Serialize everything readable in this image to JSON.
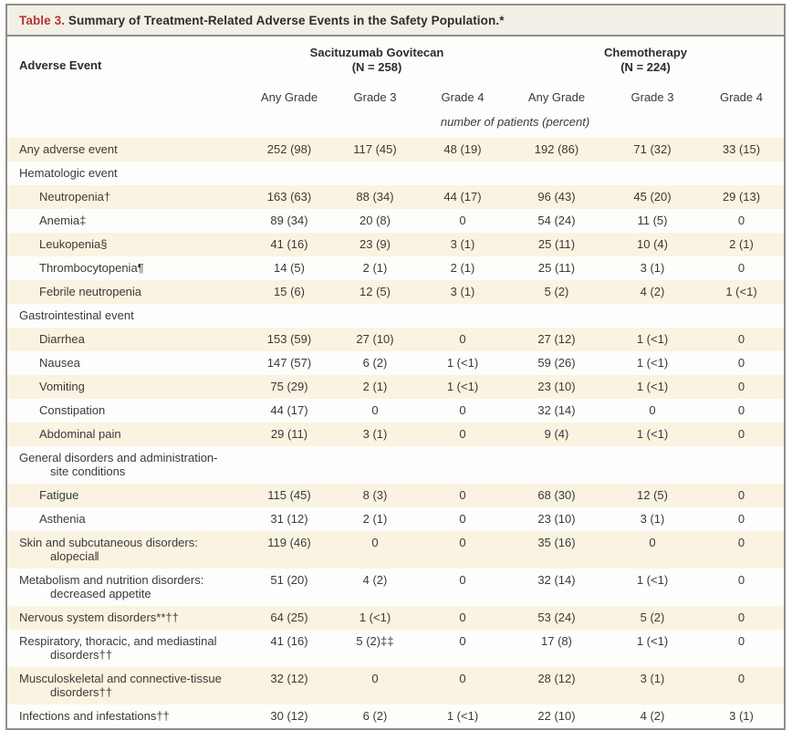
{
  "table": {
    "title_label": "Table 3.",
    "title_text": " Summary of Treatment-Related Adverse Events in the Safety Population.*",
    "left_header": "Adverse Event",
    "groups": [
      {
        "name": "Sacituzumab Govitecan",
        "n": "(N = 258)"
      },
      {
        "name": "Chemotherapy",
        "n": "(N = 224)"
      }
    ],
    "subcolumns": [
      "Any Grade",
      "Grade 3",
      "Grade 4",
      "Any Grade",
      "Grade 3",
      "Grade 4"
    ],
    "units_note": "number of patients (percent)",
    "rows": [
      {
        "label_lines": [
          "Any adverse event"
        ],
        "indent": 0,
        "shaded": true,
        "values": [
          "252 (98)",
          "117 (45)",
          "48 (19)",
          "192 (86)",
          "71 (32)",
          "33 (15)"
        ]
      },
      {
        "label_lines": [
          "Hematologic event"
        ],
        "indent": 0,
        "shaded": false,
        "values": [
          "",
          "",
          "",
          "",
          "",
          ""
        ]
      },
      {
        "label_lines": [
          "Neutropenia†"
        ],
        "indent": 1,
        "shaded": true,
        "values": [
          "163 (63)",
          "88 (34)",
          "44 (17)",
          "96 (43)",
          "45 (20)",
          "29 (13)"
        ]
      },
      {
        "label_lines": [
          "Anemia‡"
        ],
        "indent": 1,
        "shaded": false,
        "values": [
          "89 (34)",
          "20 (8)",
          "0",
          "54 (24)",
          "11 (5)",
          "0"
        ]
      },
      {
        "label_lines": [
          "Leukopenia§"
        ],
        "indent": 1,
        "shaded": true,
        "values": [
          "41 (16)",
          "23 (9)",
          "3 (1)",
          "25 (11)",
          "10 (4)",
          "2 (1)"
        ]
      },
      {
        "label_lines": [
          "Thrombocytopenia¶"
        ],
        "indent": 1,
        "shaded": false,
        "values": [
          "14 (5)",
          "2 (1)",
          "2 (1)",
          "25 (11)",
          "3 (1)",
          "0"
        ]
      },
      {
        "label_lines": [
          "Febrile neutropenia"
        ],
        "indent": 1,
        "shaded": true,
        "values": [
          "15 (6)",
          "12 (5)",
          "3 (1)",
          "5 (2)",
          "4 (2)",
          "1 (<1)"
        ]
      },
      {
        "label_lines": [
          "Gastrointestinal event"
        ],
        "indent": 0,
        "shaded": false,
        "values": [
          "",
          "",
          "",
          "",
          "",
          ""
        ]
      },
      {
        "label_lines": [
          "Diarrhea"
        ],
        "indent": 1,
        "shaded": true,
        "values": [
          "153 (59)",
          "27 (10)",
          "0",
          "27 (12)",
          "1 (<1)",
          "0"
        ]
      },
      {
        "label_lines": [
          "Nausea"
        ],
        "indent": 1,
        "shaded": false,
        "values": [
          "147 (57)",
          "6 (2)",
          "1 (<1)",
          "59 (26)",
          "1 (<1)",
          "0"
        ]
      },
      {
        "label_lines": [
          "Vomiting"
        ],
        "indent": 1,
        "shaded": true,
        "values": [
          "75 (29)",
          "2 (1)",
          "1 (<1)",
          "23 (10)",
          "1 (<1)",
          "0"
        ]
      },
      {
        "label_lines": [
          "Constipation"
        ],
        "indent": 1,
        "shaded": false,
        "values": [
          "44 (17)",
          "0",
          "0",
          "32 (14)",
          "0",
          "0"
        ]
      },
      {
        "label_lines": [
          "Abdominal pain"
        ],
        "indent": 1,
        "shaded": true,
        "values": [
          "29 (11)",
          "3 (1)",
          "0",
          "9 (4)",
          "1 (<1)",
          "0"
        ]
      },
      {
        "label_lines": [
          "General disorders and administration-",
          "site conditions"
        ],
        "indent": 0,
        "shaded": false,
        "values": [
          "",
          "",
          "",
          "",
          "",
          ""
        ]
      },
      {
        "label_lines": [
          "Fatigue"
        ],
        "indent": 1,
        "shaded": true,
        "values": [
          "115 (45)",
          "8 (3)",
          "0",
          "68 (30)",
          "12 (5)",
          "0"
        ]
      },
      {
        "label_lines": [
          "Asthenia"
        ],
        "indent": 1,
        "shaded": false,
        "values": [
          "31 (12)",
          "2 (1)",
          "0",
          "23 (10)",
          "3 (1)",
          "0"
        ]
      },
      {
        "label_lines": [
          "Skin and subcutaneous disorders:",
          "alopecia‖"
        ],
        "indent": 0,
        "shaded": true,
        "values": [
          "119 (46)",
          "0",
          "0",
          "35 (16)",
          "0",
          "0"
        ]
      },
      {
        "label_lines": [
          "Metabolism and nutrition disorders:",
          "decreased appetite"
        ],
        "indent": 0,
        "shaded": false,
        "values": [
          "51 (20)",
          "4 (2)",
          "0",
          "32 (14)",
          "1 (<1)",
          "0"
        ]
      },
      {
        "label_lines": [
          "Nervous system disorders**††"
        ],
        "indent": 0,
        "shaded": true,
        "values": [
          "64 (25)",
          "1 (<1)",
          "0",
          "53 (24)",
          "5 (2)",
          "0"
        ]
      },
      {
        "label_lines": [
          "Respiratory, thoracic, and mediastinal",
          "disorders††"
        ],
        "indent": 0,
        "shaded": false,
        "values": [
          "41 (16)",
          "5 (2)‡‡",
          "0",
          "17 (8)",
          "1 (<1)",
          "0"
        ]
      },
      {
        "label_lines": [
          "Musculoskeletal and connective-tissue",
          "disorders††"
        ],
        "indent": 0,
        "shaded": true,
        "values": [
          "32 (12)",
          "0",
          "0",
          "28 (12)",
          "3 (1)",
          "0"
        ]
      },
      {
        "label_lines": [
          "Infections and infestations††"
        ],
        "indent": 0,
        "shaded": false,
        "values": [
          "30 (12)",
          "6 (2)",
          "1 (<1)",
          "22 (10)",
          "4 (2)",
          "3 (1)"
        ]
      }
    ]
  },
  "colors": {
    "accent_red": "#b4362e",
    "shaded_row": "#faf3e1",
    "title_bar_bg": "#f2efe7",
    "border_gray": "#8f8e89"
  }
}
